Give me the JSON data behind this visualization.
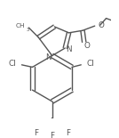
{
  "bg": "#ffffff",
  "lc": "#555555",
  "lw": 1.0,
  "fs": 5.8,
  "fig_w": 1.34,
  "fig_h": 1.55,
  "dpi": 100,
  "xlim": [
    0,
    134
  ],
  "ylim": [
    0,
    155
  ]
}
